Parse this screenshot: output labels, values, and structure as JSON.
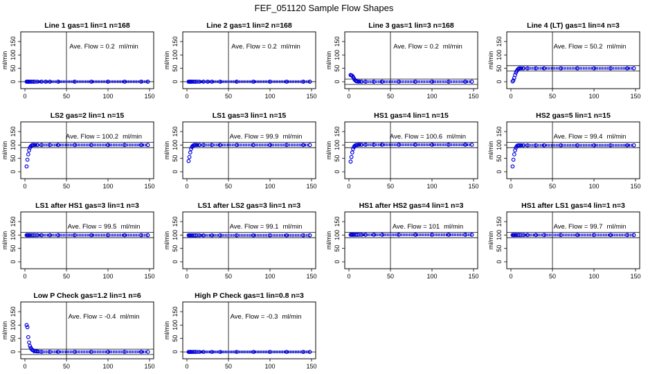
{
  "figure": {
    "title": "FEF_051120  Sample Flow Shapes"
  },
  "chart_data": [
    {
      "type": "scatter",
      "title": "Line 1 gas=1 lin=1 n=168",
      "annotation": "Ave. Flow = ",
      "flow_value": "0.2",
      "flow_unit": "ml/min",
      "ylabel": "ml/min",
      "xlim": [
        0,
        150
      ],
      "ylim": [
        0,
        150
      ],
      "xticks": [
        0,
        50,
        100,
        150
      ],
      "yticks": [
        0,
        50,
        100,
        150
      ],
      "xticklabels": [
        "0",
        "50",
        "100",
        "150"
      ],
      "yticklabels": [
        "0",
        "50",
        "100",
        "150"
      ],
      "mean": 0.2,
      "vline_x": 50,
      "hlines": [
        0.2
      ],
      "x": [
        2,
        3,
        4,
        5,
        6,
        8,
        10,
        12,
        15,
        20,
        25,
        30,
        40,
        60,
        80,
        100,
        120,
        140,
        148
      ],
      "y": [
        0.2,
        0.2,
        0.2,
        0.2,
        0.2,
        0.2,
        0.2,
        0.2,
        0.2,
        0.2,
        0.2,
        0.2,
        0.2,
        0.2,
        0.2,
        0.2,
        0.2,
        0.2,
        0.2
      ]
    },
    {
      "type": "scatter",
      "title": "Line 2 gas=1 lin=2 n=168",
      "annotation": "Ave. Flow = ",
      "flow_value": "0.2",
      "flow_unit": "ml/min",
      "ylabel": "ml/min",
      "xlim": [
        0,
        150
      ],
      "ylim": [
        0,
        150
      ],
      "xticks": [
        0,
        50,
        100,
        150
      ],
      "yticks": [
        0,
        50,
        100,
        150
      ],
      "xticklabels": [
        "0",
        "50",
        "100",
        "150"
      ],
      "yticklabels": [
        "0",
        "50",
        "100",
        "150"
      ],
      "mean": 0.2,
      "vline_x": 50,
      "hlines": [
        0.2
      ],
      "x": [
        2,
        3,
        4,
        5,
        6,
        8,
        10,
        12,
        15,
        20,
        25,
        30,
        40,
        60,
        80,
        100,
        120,
        140,
        148
      ],
      "y": [
        0.2,
        0.2,
        0.2,
        0.2,
        0.2,
        0.2,
        0.2,
        0.2,
        0.2,
        0.2,
        0.2,
        0.2,
        0.2,
        0.2,
        0.2,
        0.2,
        0.2,
        0.2,
        0.2
      ]
    },
    {
      "type": "scatter",
      "title": "Line 3 gas=1 lin=3 n=168",
      "annotation": "Ave. Flow = ",
      "flow_value": "0.2",
      "flow_unit": "ml/min",
      "ylabel": "ml/min",
      "xlim": [
        0,
        150
      ],
      "ylim": [
        0,
        150
      ],
      "xticks": [
        0,
        50,
        100,
        150
      ],
      "yticks": [
        0,
        50,
        100,
        150
      ],
      "xticklabels": [
        "0",
        "50",
        "100",
        "150"
      ],
      "yticklabels": [
        "0",
        "50",
        "100",
        "150"
      ],
      "mean": 0.2,
      "vline_x": 50,
      "hlines": [
        -10,
        10
      ],
      "x": [
        2,
        3,
        4,
        5,
        6,
        7,
        8,
        9,
        10,
        12,
        15,
        20,
        30,
        40,
        60,
        80,
        100,
        120,
        140,
        148
      ],
      "y": [
        25,
        24,
        22,
        18,
        12,
        7,
        4,
        2,
        1,
        0.5,
        0.2,
        0.2,
        0.2,
        0.2,
        0.2,
        0.2,
        0.2,
        0.2,
        0.2,
        0.2
      ]
    },
    {
      "type": "scatter",
      "title": "Line 4 (LT) gas=1 lin=4 n=3",
      "annotation": "Ave. Flow = ",
      "flow_value": "50.2",
      "flow_unit": "ml/min",
      "ylabel": "ml/min",
      "xlim": [
        0,
        150
      ],
      "ylim": [
        0,
        150
      ],
      "xticks": [
        0,
        50,
        100,
        150
      ],
      "yticks": [
        0,
        50,
        100,
        150
      ],
      "xticklabels": [
        "0",
        "50",
        "100",
        "150"
      ],
      "yticklabels": [
        "0",
        "50",
        "100",
        "150"
      ],
      "mean": 50.2,
      "vline_x": 50,
      "hlines": [
        40,
        60
      ],
      "x": [
        2,
        3,
        4,
        5,
        6,
        7,
        8,
        9,
        10,
        12,
        15,
        20,
        30,
        40,
        60,
        80,
        100,
        120,
        140,
        148
      ],
      "y": [
        1,
        5,
        14,
        25,
        34,
        40,
        45,
        48,
        50,
        50,
        50,
        50,
        50,
        50,
        50,
        50,
        50,
        50,
        50,
        50
      ]
    },
    {
      "type": "scatter",
      "title": "LS2 gas=2 lin=1 n=15",
      "annotation": "Ave. Flow = ",
      "flow_value": "100.2",
      "flow_unit": "ml/min",
      "ylabel": "ml/min",
      "xlim": [
        0,
        150
      ],
      "ylim": [
        0,
        150
      ],
      "xticks": [
        0,
        50,
        100,
        150
      ],
      "yticks": [
        0,
        50,
        100,
        150
      ],
      "xticklabels": [
        "0",
        "50",
        "100",
        "150"
      ],
      "yticklabels": [
        "0",
        "50",
        "100",
        "150"
      ],
      "mean": 100.2,
      "vline_x": 50,
      "hlines": [
        90,
        110
      ],
      "x": [
        2,
        3,
        4,
        5,
        6,
        7,
        8,
        9,
        10,
        12,
        15,
        20,
        30,
        40,
        60,
        80,
        100,
        120,
        140,
        148
      ],
      "y": [
        20,
        45,
        65,
        80,
        90,
        95,
        98,
        100,
        100,
        100,
        100,
        100,
        100,
        100,
        100,
        100,
        100,
        100,
        100,
        100
      ]
    },
    {
      "type": "scatter",
      "title": "LS1 gas=3 lin=1 n=15",
      "annotation": "Ave. Flow = ",
      "flow_value": "99.9",
      "flow_unit": "ml/min",
      "ylabel": "ml/min",
      "xlim": [
        0,
        150
      ],
      "ylim": [
        0,
        150
      ],
      "xticks": [
        0,
        50,
        100,
        150
      ],
      "yticks": [
        0,
        50,
        100,
        150
      ],
      "xticklabels": [
        "0",
        "50",
        "100",
        "150"
      ],
      "yticklabels": [
        "0",
        "50",
        "100",
        "150"
      ],
      "mean": 99.9,
      "vline_x": 50,
      "hlines": [
        90,
        110
      ],
      "x": [
        2,
        3,
        4,
        5,
        6,
        7,
        8,
        9,
        10,
        12,
        15,
        20,
        30,
        40,
        60,
        80,
        100,
        120,
        140,
        148
      ],
      "y": [
        40,
        55,
        72,
        85,
        93,
        97,
        99,
        100,
        100,
        100,
        100,
        100,
        100,
        100,
        100,
        100,
        100,
        100,
        100,
        100
      ]
    },
    {
      "type": "scatter",
      "title": "HS1 gas=4 lin=1 n=15",
      "annotation": "Ave. Flow = ",
      "flow_value": "100.6",
      "flow_unit": "ml/min",
      "ylabel": "ml/min",
      "xlim": [
        0,
        150
      ],
      "ylim": [
        0,
        150
      ],
      "xticks": [
        0,
        50,
        100,
        150
      ],
      "yticks": [
        0,
        50,
        100,
        150
      ],
      "xticklabels": [
        "0",
        "50",
        "100",
        "150"
      ],
      "yticklabels": [
        "0",
        "50",
        "100",
        "150"
      ],
      "mean": 100.6,
      "vline_x": 50,
      "hlines": [
        90,
        110
      ],
      "x": [
        2,
        3,
        4,
        5,
        6,
        7,
        8,
        9,
        10,
        12,
        15,
        20,
        30,
        40,
        60,
        80,
        100,
        120,
        140,
        148
      ],
      "y": [
        38,
        55,
        72,
        85,
        93,
        97,
        99,
        100,
        100,
        101,
        101,
        101,
        101,
        101,
        101,
        101,
        101,
        101,
        101,
        101
      ]
    },
    {
      "type": "scatter",
      "title": "HS2 gas=5 lin=1 n=15",
      "annotation": "Ave. Flow = ",
      "flow_value": "99.4",
      "flow_unit": "ml/min",
      "ylabel": "ml/min",
      "xlim": [
        0,
        150
      ],
      "ylim": [
        0,
        150
      ],
      "xticks": [
        0,
        50,
        100,
        150
      ],
      "yticks": [
        0,
        50,
        100,
        150
      ],
      "xticklabels": [
        "0",
        "50",
        "100",
        "150"
      ],
      "yticklabels": [
        "0",
        "50",
        "100",
        "150"
      ],
      "mean": 99.4,
      "vline_x": 50,
      "hlines": [
        90,
        110
      ],
      "x": [
        2,
        3,
        4,
        5,
        6,
        7,
        8,
        9,
        10,
        12,
        15,
        20,
        30,
        40,
        60,
        80,
        100,
        120,
        140,
        148
      ],
      "y": [
        20,
        45,
        65,
        80,
        90,
        95,
        98,
        99,
        99,
        99,
        99,
        99,
        99,
        99,
        99,
        99,
        99,
        99,
        99,
        99
      ]
    },
    {
      "type": "scatter",
      "title": "LS1 after HS1 gas=3 lin=1 n=3",
      "annotation": "Ave. Flow = ",
      "flow_value": "99.5",
      "flow_unit": "ml/min",
      "ylabel": "ml/min",
      "xlim": [
        0,
        150
      ],
      "ylim": [
        0,
        150
      ],
      "xticks": [
        0,
        50,
        100,
        150
      ],
      "yticks": [
        0,
        50,
        100,
        150
      ],
      "xticklabels": [
        "0",
        "50",
        "100",
        "150"
      ],
      "yticklabels": [
        "0",
        "50",
        "100",
        "150"
      ],
      "mean": 99.5,
      "vline_x": 50,
      "hlines": [
        90,
        110
      ],
      "x": [
        2,
        3,
        4,
        5,
        6,
        8,
        10,
        12,
        15,
        20,
        30,
        40,
        60,
        80,
        100,
        120,
        140,
        148
      ],
      "y": [
        99.5,
        99.5,
        99.5,
        99.5,
        99.5,
        99.5,
        99.5,
        99.5,
        99.5,
        99.5,
        99.5,
        99.5,
        99.5,
        99.5,
        99.5,
        99.5,
        99.5,
        99.5
      ]
    },
    {
      "type": "scatter",
      "title": "LS1 after LS2 gas=3 lin=1 n=3",
      "annotation": "Ave. Flow = ",
      "flow_value": "99.1",
      "flow_unit": "ml/min",
      "ylabel": "ml/min",
      "xlim": [
        0,
        150
      ],
      "ylim": [
        0,
        150
      ],
      "xticks": [
        0,
        50,
        100,
        150
      ],
      "yticks": [
        0,
        50,
        100,
        150
      ],
      "xticklabels": [
        "0",
        "50",
        "100",
        "150"
      ],
      "yticklabels": [
        "0",
        "50",
        "100",
        "150"
      ],
      "mean": 99.1,
      "vline_x": 50,
      "hlines": [
        90,
        110
      ],
      "x": [
        2,
        3,
        4,
        5,
        6,
        8,
        10,
        12,
        15,
        20,
        30,
        40,
        60,
        80,
        100,
        120,
        140,
        148
      ],
      "y": [
        99,
        99,
        99,
        99,
        99,
        99,
        99,
        99,
        99,
        99,
        99,
        99,
        99,
        99,
        99,
        99,
        99,
        99
      ]
    },
    {
      "type": "scatter",
      "title": "HS1 after HS2 gas=4 lin=1 n=3",
      "annotation": "Ave. Flow = ",
      "flow_value": "101",
      "flow_unit": "ml/min",
      "ylabel": "ml/min",
      "xlim": [
        0,
        150
      ],
      "ylim": [
        0,
        150
      ],
      "xticks": [
        0,
        50,
        100,
        150
      ],
      "yticks": [
        0,
        50,
        100,
        150
      ],
      "xticklabels": [
        "0",
        "50",
        "100",
        "150"
      ],
      "yticklabels": [
        "0",
        "50",
        "100",
        "150"
      ],
      "mean": 101,
      "vline_x": 50,
      "hlines": [
        90,
        110
      ],
      "x": [
        2,
        3,
        4,
        5,
        6,
        8,
        10,
        12,
        15,
        20,
        30,
        40,
        60,
        80,
        100,
        120,
        140,
        148
      ],
      "y": [
        101,
        101,
        101,
        101,
        101,
        101,
        101,
        101,
        101,
        101,
        101,
        101,
        101,
        101,
        101,
        101,
        101,
        101
      ]
    },
    {
      "type": "scatter",
      "title": "HS1 after LS1 gas=4 lin=1 n=3",
      "annotation": "Ave. Flow = ",
      "flow_value": "99.7",
      "flow_unit": "ml/min",
      "ylabel": "ml/min",
      "xlim": [
        0,
        150
      ],
      "ylim": [
        0,
        150
      ],
      "xticks": [
        0,
        50,
        100,
        150
      ],
      "yticks": [
        0,
        50,
        100,
        150
      ],
      "xticklabels": [
        "0",
        "50",
        "100",
        "150"
      ],
      "yticklabels": [
        "0",
        "50",
        "100",
        "150"
      ],
      "mean": 99.7,
      "vline_x": 50,
      "hlines": [
        90,
        110
      ],
      "x": [
        2,
        3,
        4,
        5,
        6,
        8,
        10,
        12,
        15,
        20,
        30,
        40,
        60,
        80,
        100,
        120,
        140,
        148
      ],
      "y": [
        100,
        100,
        100,
        100,
        100,
        100,
        100,
        100,
        100,
        100,
        100,
        100,
        100,
        100,
        100,
        100,
        100,
        100
      ]
    },
    {
      "type": "scatter",
      "title": "Low P Check gas=1.2 lin=1 n=6",
      "annotation": "Ave. Flow = ",
      "flow_value": "-0.4",
      "flow_unit": "ml/min",
      "ylabel": "ml/min",
      "xlim": [
        0,
        150
      ],
      "ylim": [
        0,
        150
      ],
      "xticks": [
        0,
        50,
        100,
        150
      ],
      "yticks": [
        0,
        50,
        100,
        150
      ],
      "xticklabels": [
        "0",
        "50",
        "100",
        "150"
      ],
      "yticklabels": [
        "0",
        "50",
        "100",
        "150"
      ],
      "mean": -0.4,
      "vline_x": 50,
      "hlines": [
        -10,
        10
      ],
      "x": [
        2,
        3,
        4,
        5,
        6,
        7,
        8,
        9,
        10,
        12,
        14,
        16,
        20,
        30,
        40,
        60,
        80,
        100,
        120,
        140,
        148
      ],
      "y": [
        100,
        92,
        55,
        35,
        22,
        15,
        10,
        7,
        5,
        3,
        2,
        1,
        0,
        0,
        0,
        0,
        0,
        0,
        0,
        0,
        0
      ]
    },
    {
      "type": "scatter",
      "title": "High P Check gas=1 lin=0.8 n=3",
      "annotation": "Ave. Flow = ",
      "flow_value": "-0.3",
      "flow_unit": "ml/min",
      "ylabel": "ml/min",
      "xlim": [
        0,
        150
      ],
      "ylim": [
        0,
        150
      ],
      "xticks": [
        0,
        50,
        100,
        150
      ],
      "yticks": [
        0,
        50,
        100,
        150
      ],
      "xticklabels": [
        "0",
        "50",
        "100",
        "150"
      ],
      "yticklabels": [
        "0",
        "50",
        "100",
        "150"
      ],
      "mean": -0.3,
      "vline_x": 50,
      "hlines": [
        -0.3
      ],
      "x": [
        2,
        3,
        4,
        5,
        6,
        8,
        10,
        12,
        15,
        20,
        30,
        40,
        60,
        80,
        100,
        120,
        140,
        148
      ],
      "y": [
        -0.3,
        -0.3,
        -0.3,
        -0.3,
        -0.3,
        -0.3,
        -0.3,
        -0.3,
        -0.3,
        -0.3,
        -0.3,
        -0.3,
        -0.3,
        -0.3,
        -0.3,
        -0.3,
        -0.3,
        -0.3
      ]
    }
  ]
}
